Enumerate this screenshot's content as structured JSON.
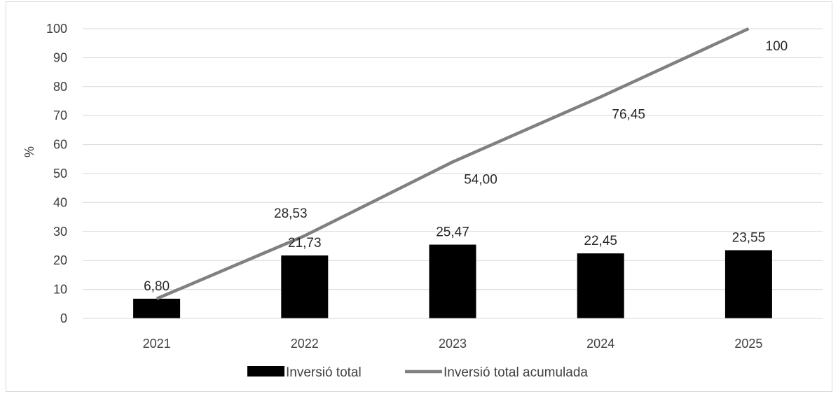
{
  "chart_data": {
    "type": "bar",
    "categories": [
      "2021",
      "2022",
      "2023",
      "2024",
      "2025"
    ],
    "series": [
      {
        "name": "Inversió total",
        "type": "bar",
        "values": [
          6.8,
          21.73,
          25.47,
          22.45,
          23.55
        ],
        "labels": [
          "6,80",
          "21,73",
          "25,47",
          "22,45",
          "23,55"
        ],
        "color": "#000000"
      },
      {
        "name": "Inversió total acumulada",
        "type": "line",
        "values": [
          6.8,
          28.53,
          54.0,
          76.45,
          100
        ],
        "labels": [
          "",
          "28,53",
          "54,00",
          "76,45",
          "100"
        ],
        "color": "#808080"
      }
    ],
    "ylabel": "%",
    "yticks": [
      0,
      10,
      20,
      30,
      40,
      50,
      60,
      70,
      80,
      90,
      100
    ],
    "ylim": [
      0,
      100
    ],
    "grid": true,
    "legend_position": "bottom"
  }
}
